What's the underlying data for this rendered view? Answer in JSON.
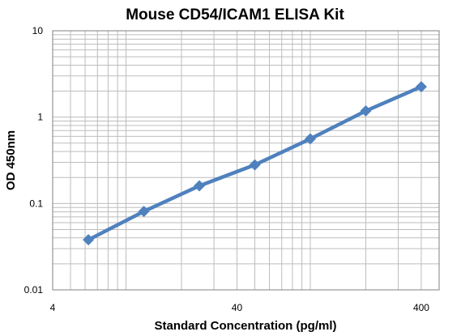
{
  "chart_data": {
    "type": "line",
    "title": "Mouse CD54/ICAM1 ELISA Kit",
    "xlabel": "Standard Concentration (pg/ml)",
    "ylabel": "OD 450nm",
    "x_scale": "log",
    "y_scale": "log",
    "xlim": [
      4,
      500
    ],
    "ylim": [
      0.01,
      10
    ],
    "x_ticks": [
      4,
      40,
      400
    ],
    "x_tick_labels": [
      "4",
      "40",
      "400"
    ],
    "y_ticks": [
      0.01,
      0.1,
      1,
      10
    ],
    "y_tick_labels": [
      "0.01",
      "0.1",
      "1",
      "10"
    ],
    "grid": true,
    "legend": "none",
    "series": [
      {
        "color": "#4f81bd",
        "marker": "diamond",
        "x": [
          6.25,
          12.5,
          25,
          50,
          100,
          200,
          400
        ],
        "y": [
          0.038,
          0.081,
          0.16,
          0.28,
          0.56,
          1.18,
          2.25
        ]
      }
    ]
  }
}
